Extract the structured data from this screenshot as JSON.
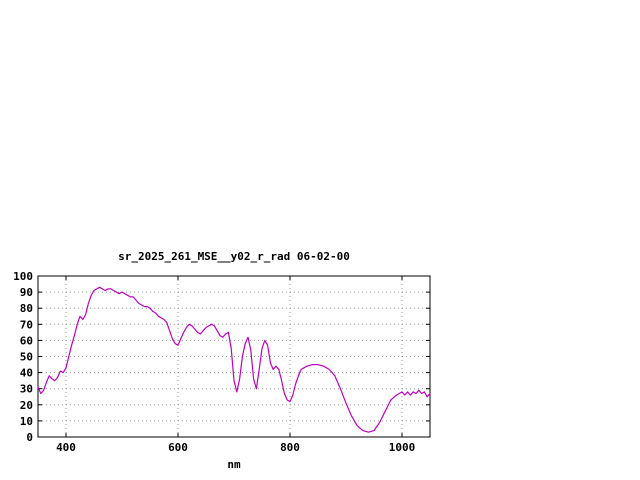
{
  "window": {
    "background": "#ffffff"
  },
  "chart_data": {
    "type": "line",
    "title": "sr_2025_261_MSE__y02_r_rad 06-02-00",
    "xlabel": "nm",
    "ylabel": "",
    "xlim": [
      350,
      1050
    ],
    "ylim": [
      0,
      100
    ],
    "xticks": [
      400,
      600,
      800,
      1000
    ],
    "yticks": [
      0,
      10,
      20,
      30,
      40,
      50,
      60,
      70,
      80,
      90,
      100
    ],
    "grid": true,
    "legend": "none",
    "line_color": "#c000c0",
    "grid_color": "#9a9a9a",
    "axis_color": "#000000",
    "series": [
      {
        "name": "sr_2025_261_MSE__y02_r_rad",
        "x": [
          350,
          355,
          360,
          365,
          370,
          375,
          380,
          385,
          390,
          395,
          400,
          405,
          410,
          415,
          420,
          425,
          430,
          435,
          440,
          445,
          450,
          455,
          460,
          465,
          470,
          475,
          480,
          485,
          490,
          495,
          500,
          505,
          510,
          515,
          520,
          525,
          530,
          535,
          540,
          545,
          550,
          555,
          560,
          565,
          570,
          575,
          580,
          585,
          590,
          595,
          600,
          605,
          610,
          615,
          620,
          625,
          630,
          635,
          640,
          645,
          650,
          655,
          660,
          665,
          670,
          675,
          680,
          685,
          690,
          695,
          700,
          705,
          710,
          715,
          720,
          725,
          730,
          735,
          740,
          745,
          750,
          755,
          760,
          765,
          770,
          775,
          780,
          785,
          790,
          795,
          800,
          805,
          810,
          815,
          820,
          825,
          830,
          840,
          850,
          860,
          870,
          880,
          890,
          900,
          910,
          920,
          930,
          940,
          950,
          960,
          970,
          980,
          990,
          1000,
          1005,
          1010,
          1015,
          1020,
          1025,
          1030,
          1035,
          1040,
          1045,
          1050
        ],
        "y": [
          31,
          27,
          29,
          34,
          38,
          36,
          35,
          37,
          41,
          40,
          43,
          50,
          57,
          63,
          70,
          75,
          73,
          76,
          83,
          88,
          91,
          92,
          93,
          92,
          91,
          92,
          92,
          91,
          90,
          89,
          90,
          89,
          88,
          87,
          87,
          85,
          83,
          82,
          81,
          81,
          80,
          78,
          77,
          75,
          74,
          73,
          71,
          66,
          61,
          58,
          57,
          61,
          65,
          68,
          70,
          69,
          67,
          65,
          64,
          66,
          68,
          69,
          70,
          69,
          66,
          63,
          62,
          64,
          65,
          55,
          35,
          28,
          36,
          50,
          58,
          62,
          54,
          36,
          30,
          42,
          55,
          60,
          57,
          46,
          42,
          44,
          42,
          35,
          27,
          23,
          22,
          26,
          33,
          38,
          42,
          43,
          44,
          45,
          45,
          44,
          42,
          38,
          30,
          21,
          13,
          7,
          4,
          3,
          4,
          9,
          16,
          23,
          26,
          28,
          26,
          28,
          26,
          28,
          27,
          29,
          27,
          28,
          25,
          27
        ]
      }
    ]
  }
}
